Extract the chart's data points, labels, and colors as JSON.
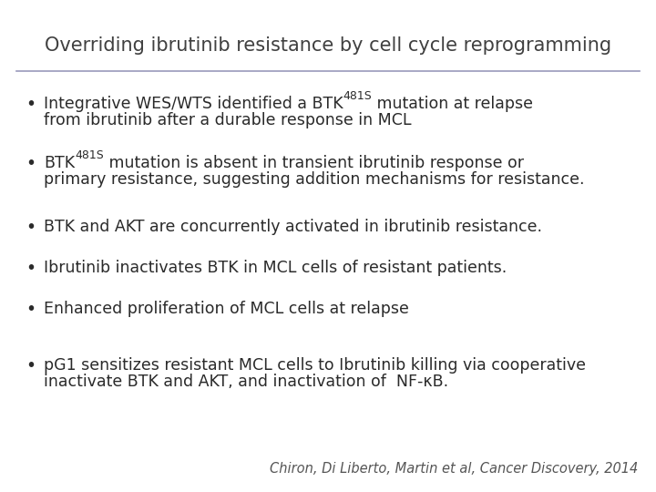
{
  "title": "Overriding ibrutinib resistance by cell cycle reprogramming",
  "title_fontsize": 15,
  "title_color": "#404040",
  "bg_color": "#ffffff",
  "line_color": "#9999bb",
  "bullet_points": [
    {
      "lines": [
        [
          {
            "text": "Integrative WES/WTS identified a BTK",
            "super": false
          },
          {
            "text": "481S",
            "super": true
          },
          {
            "text": " mutation at relapse",
            "super": false
          }
        ],
        [
          {
            "text": "from ibrutinib after a durable response in MCL",
            "super": false
          }
        ]
      ]
    },
    {
      "lines": [
        [
          {
            "text": "BTK",
            "super": false
          },
          {
            "text": "481S",
            "super": true
          },
          {
            "text": " mutation is absent in transient ibrutinib response or",
            "super": false
          }
        ],
        [
          {
            "text": "primary resistance, suggesting addition mechanisms for resistance.",
            "super": false
          }
        ]
      ]
    },
    {
      "lines": [
        [
          {
            "text": "BTK and AKT are concurrently activated in ibrutinib resistance.",
            "super": false
          }
        ]
      ]
    },
    {
      "lines": [
        [
          {
            "text": "Ibrutinib inactivates BTK in MCL cells of resistant patients.",
            "super": false
          }
        ]
      ]
    },
    {
      "lines": [
        [
          {
            "text": "Enhanced proliferation of MCL cells at relapse",
            "super": false
          }
        ]
      ]
    },
    {
      "lines": [
        [
          {
            "text": "pG1 sensitizes resistant MCL cells to Ibrutinib killing via cooperative",
            "super": false
          }
        ],
        [
          {
            "text": "inactivate BTK and AKT, and inactivation of  NF-κB.",
            "super": false
          }
        ]
      ]
    }
  ],
  "bullet_fontsize": 12.5,
  "bullet_color": "#2a2a2a",
  "citation": "Chiron, Di Liberto, Martin et al, Cancer Discovery, 2014",
  "citation_fontsize": 10.5,
  "citation_color": "#555555"
}
